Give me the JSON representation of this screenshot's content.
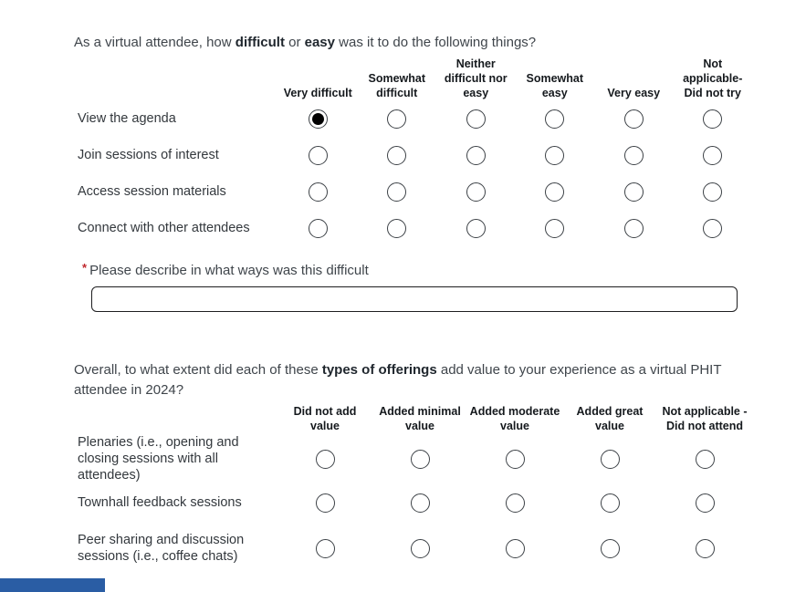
{
  "question1": {
    "parts": [
      {
        "text": "As a virtual attendee, how ",
        "bold": false
      },
      {
        "text": "difficult",
        "bold": true
      },
      {
        "text": " or ",
        "bold": false
      },
      {
        "text": "easy",
        "bold": true
      },
      {
        "text": " was it to do the following things?",
        "bold": false
      }
    ],
    "columns": [
      "Very difficult",
      "Somewhat difficult",
      "Neither difficult nor easy",
      "Somewhat easy",
      "Very easy",
      "Not applicable- Did not try"
    ],
    "rows": [
      {
        "label": "View the agenda",
        "selected": 0
      },
      {
        "label": "Join sessions of interest",
        "selected": null
      },
      {
        "label": "Access session materials",
        "selected": null
      },
      {
        "label": "Connect with other attendees",
        "selected": null
      }
    ]
  },
  "followup": {
    "required_marker": "*",
    "label": "Please describe in what ways was this difficult",
    "input_value": "",
    "required_color": "#c0282d"
  },
  "question2": {
    "parts": [
      {
        "text": "Overall, to what extent did each of these ",
        "bold": false
      },
      {
        "text": "types of offerings",
        "bold": true
      },
      {
        "text": " add value to your experience as a virtual PHIT attendee in 2024?",
        "bold": false
      }
    ],
    "columns": [
      "Did not add value",
      "Added minimal value",
      "Added moderate value",
      "Added great value",
      "Not applicable - Did not attend"
    ],
    "rows": [
      {
        "label": "Plenaries (i.e., opening and closing sessions with all attendees)",
        "selected": null
      },
      {
        "label": "Townhall feedback sessions",
        "selected": null
      },
      {
        "label": "Peer sharing and discussion sessions (i.e., coffee chats)",
        "selected": null
      }
    ]
  },
  "progress": {
    "color": "#2a5da4"
  }
}
